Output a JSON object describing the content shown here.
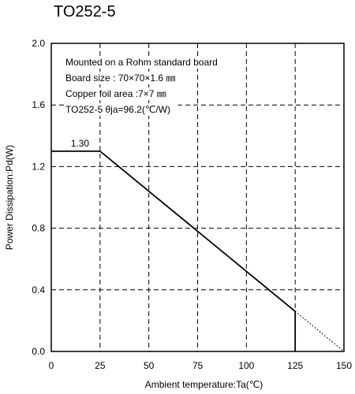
{
  "chart_data": {
    "type": "line",
    "title": "TO252-5",
    "xlabel": "Ambient temperature:Ta(℃)",
    "ylabel": "Power Dissipation:Pd(W)",
    "xlim": [
      0,
      150
    ],
    "ylim": [
      0,
      2.0
    ],
    "x_ticks": [
      0,
      25,
      50,
      75,
      100,
      125,
      150
    ],
    "y_ticks": [
      0.0,
      0.4,
      0.8,
      1.2,
      1.6,
      2.0
    ],
    "x_tick_labels": [
      "0",
      "25",
      "50",
      "75",
      "100",
      "125",
      "150"
    ],
    "y_tick_labels": [
      "0.0",
      "0.4",
      "0.8",
      "1.2",
      "1.6",
      "2.0"
    ],
    "grid": true,
    "grid_style": "dashed",
    "series": [
      {
        "style": "solid",
        "x": [
          0,
          25,
          125,
          125
        ],
        "y": [
          1.3,
          1.3,
          0.26,
          0.0
        ]
      },
      {
        "style": "dotted",
        "x": [
          125,
          150
        ],
        "y": [
          0.26,
          0.0
        ]
      }
    ],
    "annotations": {
      "lines": [
        "Mounted on a Rohm standard board",
        "Board size : 70×70×1.6 ㎜",
        "Copper foil area :7×7 ㎜",
        "TO252-5 θja=96.2(℃/W)"
      ],
      "value_label": "1.30",
      "value_label_x": 10,
      "value_label_y": 1.3
    }
  }
}
